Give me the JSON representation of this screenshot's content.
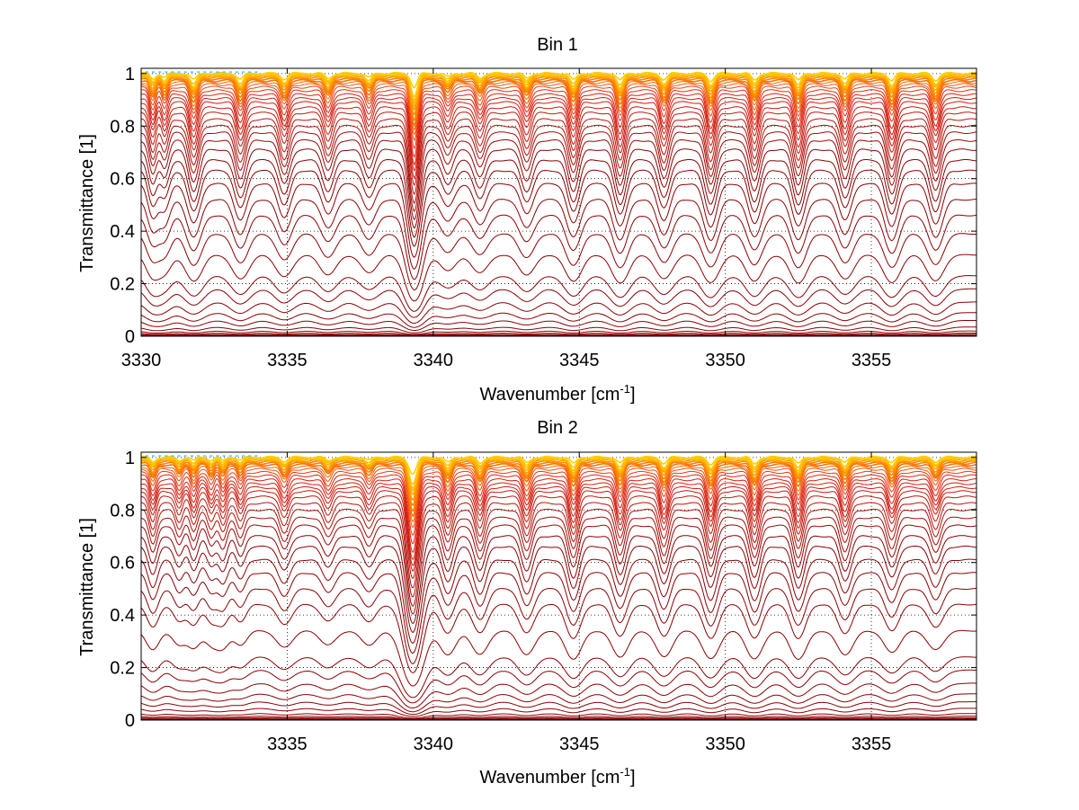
{
  "chart_data": [
    {
      "type": "line",
      "title": "Bin 1",
      "xlabel": "Wavenumber [cm",
      "xlabel_sup": "-1",
      "xlabel_end": "]",
      "ylabel": "Transmittance [1]",
      "xlim": [
        3330,
        3358.6
      ],
      "ylim": [
        0,
        1.02
      ],
      "xticks": [
        3330,
        3335,
        3340,
        3345,
        3350,
        3355
      ],
      "yticks": [
        0,
        0.2,
        0.4,
        0.6,
        0.8,
        1
      ],
      "grid": true,
      "n_curves": 40,
      "baseline_levels": [
        0.003,
        0.007,
        0.012,
        0.02,
        0.035,
        0.06,
        0.09,
        0.13,
        0.18,
        0.23,
        0.31,
        0.39,
        0.46,
        0.52,
        0.58,
        0.63,
        0.67,
        0.71,
        0.745,
        0.775,
        0.8,
        0.825,
        0.85,
        0.87,
        0.89,
        0.905,
        0.92,
        0.935,
        0.948,
        0.958,
        0.966,
        0.973,
        0.979,
        0.984,
        0.988,
        0.991,
        0.994,
        0.996,
        0.998,
        1.0
      ],
      "absorption_lines": [
        {
          "x": 3330.4,
          "depth": 0.45,
          "width": 0.12
        },
        {
          "x": 3330.8,
          "depth": 0.35,
          "width": 0.12
        },
        {
          "x": 3331.8,
          "depth": 0.55,
          "width": 0.15
        },
        {
          "x": 3333.4,
          "depth": 0.5,
          "width": 0.15
        },
        {
          "x": 3334.9,
          "depth": 0.45,
          "width": 0.15
        },
        {
          "x": 3336.4,
          "depth": 0.4,
          "width": 0.15
        },
        {
          "x": 3337.8,
          "depth": 0.35,
          "width": 0.15
        },
        {
          "x": 3339.35,
          "depth": 1.2,
          "width": 0.15
        },
        {
          "x": 3340.5,
          "depth": 0.3,
          "width": 0.15
        },
        {
          "x": 3341.6,
          "depth": 0.35,
          "width": 0.15
        },
        {
          "x": 3343.2,
          "depth": 0.4,
          "width": 0.15
        },
        {
          "x": 3344.8,
          "depth": 0.55,
          "width": 0.15
        },
        {
          "x": 3346.4,
          "depth": 0.6,
          "width": 0.15
        },
        {
          "x": 3347.9,
          "depth": 0.5,
          "width": 0.15
        },
        {
          "x": 3349.5,
          "depth": 0.6,
          "width": 0.15
        },
        {
          "x": 3351.0,
          "depth": 0.55,
          "width": 0.15
        },
        {
          "x": 3352.5,
          "depth": 0.6,
          "width": 0.15
        },
        {
          "x": 3354.1,
          "depth": 0.5,
          "width": 0.15
        },
        {
          "x": 3355.7,
          "depth": 0.6,
          "width": 0.15
        },
        {
          "x": 3357.2,
          "depth": 0.55,
          "width": 0.15
        }
      ]
    },
    {
      "type": "line",
      "title": "Bin 2",
      "xlabel": "Wavenumber [cm",
      "xlabel_sup": "-1",
      "xlabel_end": "]",
      "ylabel": "Transmittance [1]",
      "xlim": [
        3330,
        3358.6
      ],
      "ylim": [
        0,
        1.02
      ],
      "xticks": [
        3335,
        3340,
        3345,
        3350,
        3355
      ],
      "yticks": [
        0,
        0.2,
        0.4,
        0.6,
        0.8,
        1
      ],
      "grid": true,
      "n_curves": 40,
      "baseline_levels": [
        0.002,
        0.005,
        0.009,
        0.015,
        0.025,
        0.045,
        0.07,
        0.1,
        0.14,
        0.19,
        0.24,
        0.34,
        0.44,
        0.5,
        0.56,
        0.61,
        0.66,
        0.7,
        0.74,
        0.77,
        0.8,
        0.825,
        0.85,
        0.87,
        0.885,
        0.9,
        0.915,
        0.93,
        0.943,
        0.955,
        0.964,
        0.972,
        0.978,
        0.983,
        0.987,
        0.991,
        0.994,
        0.996,
        0.998,
        1.0
      ],
      "absorption_lines": [
        {
          "x": 3330.4,
          "depth": 0.35,
          "width": 0.12
        },
        {
          "x": 3331.3,
          "depth": 0.25,
          "width": 0.12
        },
        {
          "x": 3331.8,
          "depth": 0.3,
          "width": 0.12
        },
        {
          "x": 3332.4,
          "depth": 0.25,
          "width": 0.12
        },
        {
          "x": 3332.8,
          "depth": 0.3,
          "width": 0.12
        },
        {
          "x": 3333.4,
          "depth": 0.25,
          "width": 0.12
        },
        {
          "x": 3334.9,
          "depth": 0.3,
          "width": 0.15
        },
        {
          "x": 3336.4,
          "depth": 0.25,
          "width": 0.15
        },
        {
          "x": 3337.8,
          "depth": 0.25,
          "width": 0.15
        },
        {
          "x": 3339.3,
          "depth": 1.4,
          "width": 0.18
        },
        {
          "x": 3340.5,
          "depth": 0.45,
          "width": 0.15
        },
        {
          "x": 3341.6,
          "depth": 0.45,
          "width": 0.15
        },
        {
          "x": 3343.2,
          "depth": 0.45,
          "width": 0.15
        },
        {
          "x": 3344.8,
          "depth": 0.55,
          "width": 0.15
        },
        {
          "x": 3346.4,
          "depth": 0.5,
          "width": 0.15
        },
        {
          "x": 3347.9,
          "depth": 0.5,
          "width": 0.15
        },
        {
          "x": 3349.5,
          "depth": 0.55,
          "width": 0.15
        },
        {
          "x": 3351.0,
          "depth": 0.55,
          "width": 0.15
        },
        {
          "x": 3352.5,
          "depth": 0.55,
          "width": 0.15
        },
        {
          "x": 3354.1,
          "depth": 0.45,
          "width": 0.15
        },
        {
          "x": 3355.7,
          "depth": 0.4,
          "width": 0.15
        },
        {
          "x": 3357.2,
          "depth": 0.35,
          "width": 0.15
        }
      ]
    }
  ],
  "colors": {
    "curve_low": "#8b0000",
    "curve_mid": "#e02010",
    "curve_high": "#ff8c00",
    "curve_top": "#ffd000",
    "curve_top_accent": "#40c0ff",
    "grid": "#000000",
    "axis": "#000000"
  }
}
